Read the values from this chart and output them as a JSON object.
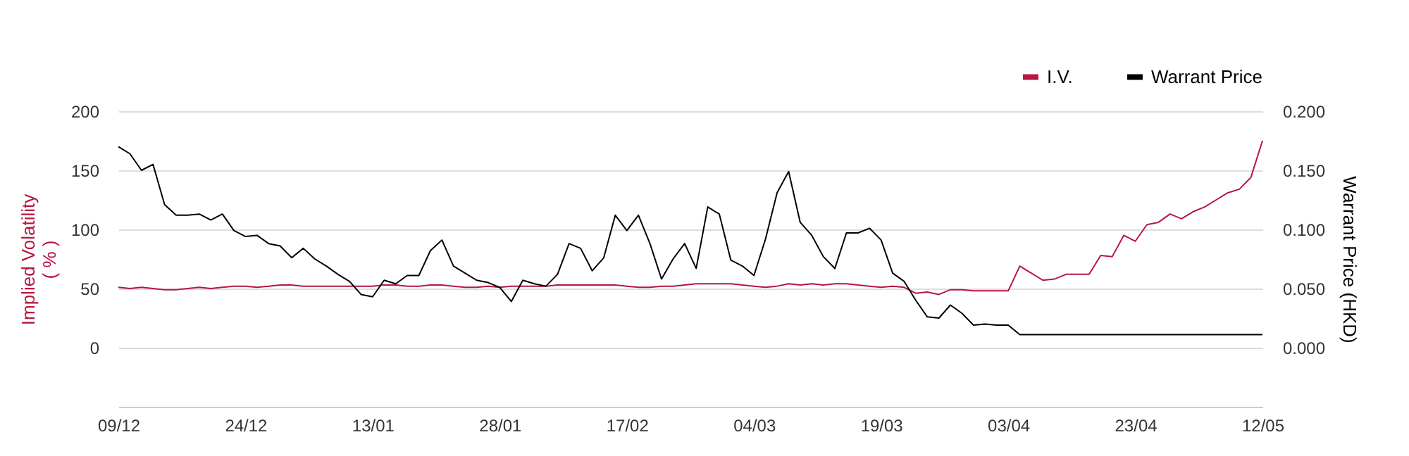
{
  "chart_data": {
    "type": "line",
    "categories": [
      "09/12",
      null,
      null,
      null,
      null,
      null,
      null,
      null,
      null,
      null,
      null,
      "24/12",
      null,
      null,
      null,
      null,
      null,
      null,
      null,
      null,
      null,
      null,
      "13/01",
      null,
      null,
      null,
      null,
      null,
      null,
      null,
      null,
      null,
      null,
      "28/01",
      null,
      null,
      null,
      null,
      null,
      null,
      null,
      null,
      null,
      null,
      "17/02",
      null,
      null,
      null,
      null,
      null,
      null,
      null,
      null,
      null,
      null,
      "04/03",
      null,
      null,
      null,
      null,
      null,
      null,
      null,
      null,
      null,
      null,
      "19/03",
      null,
      null,
      null,
      null,
      null,
      null,
      null,
      null,
      null,
      null,
      "03/04",
      null,
      null,
      null,
      null,
      null,
      null,
      null,
      null,
      null,
      null,
      "23/04",
      null,
      null,
      null,
      null,
      null,
      null,
      null,
      null,
      null,
      null,
      "12/05"
    ],
    "series": [
      {
        "name": "I.V.",
        "color": "#b5173f",
        "values": [
          51,
          50,
          51,
          50,
          49,
          49,
          50,
          51,
          50,
          51,
          52,
          52,
          51,
          52,
          53,
          53,
          52,
          52,
          52,
          52,
          52,
          52,
          52,
          53,
          53,
          52,
          52,
          53,
          53,
          52,
          51,
          51,
          52,
          51,
          52,
          52,
          52,
          52,
          53,
          53,
          53,
          53,
          53,
          53,
          52,
          51,
          51,
          52,
          52,
          53,
          54,
          54,
          54,
          54,
          53,
          52,
          51,
          52,
          54,
          53,
          54,
          53,
          54,
          54,
          53,
          52,
          51,
          52,
          51,
          46,
          47,
          45,
          49,
          49,
          48,
          48,
          48,
          48,
          69,
          63,
          57,
          58,
          62,
          62,
          62,
          78,
          77,
          95,
          90,
          104,
          106,
          113,
          109,
          115,
          119,
          125,
          131,
          134,
          144,
          175
        ]
      },
      {
        "name": "Warrant Price",
        "color": "#000000",
        "axis": "y2",
        "values": [
          0.17,
          0.164,
          0.15,
          0.155,
          0.121,
          0.112,
          0.112,
          0.113,
          0.108,
          0.113,
          0.099,
          0.094,
          0.095,
          0.088,
          0.086,
          0.076,
          0.084,
          0.075,
          0.069,
          0.062,
          0.056,
          0.045,
          0.043,
          0.057,
          0.054,
          0.061,
          0.061,
          0.082,
          0.091,
          0.069,
          0.063,
          0.057,
          0.055,
          0.051,
          0.039,
          0.057,
          0.054,
          0.052,
          0.062,
          0.088,
          0.084,
          0.065,
          0.076,
          0.112,
          0.099,
          0.112,
          0.088,
          0.058,
          0.075,
          0.088,
          0.067,
          0.119,
          0.113,
          0.074,
          0.069,
          0.061,
          0.092,
          0.131,
          0.149,
          0.106,
          0.095,
          0.077,
          0.067,
          0.097,
          0.097,
          0.101,
          0.091,
          0.063,
          0.056,
          0.04,
          0.026,
          0.025,
          0.036,
          0.029,
          0.019,
          0.02,
          0.019,
          0.019,
          0.011,
          0.011,
          0.011,
          0.011,
          0.011,
          0.011,
          0.011,
          0.011,
          0.011,
          0.011,
          0.011,
          0.011,
          0.011,
          0.011,
          0.011,
          0.011,
          0.011,
          0.011,
          0.011,
          0.011,
          0.011,
          0.011
        ]
      }
    ],
    "ylabel": "Implied Volatility\n( % )",
    "y2label": "Warrant Price (HKD)",
    "ylim": [
      -50,
      200
    ],
    "yticks": [
      0,
      50,
      100,
      150,
      200
    ],
    "y2lim": [
      -0.05,
      0.2
    ],
    "y2ticks": [
      {
        "value": 0,
        "label": "0.000"
      },
      {
        "value": 0.05,
        "label": "0.050"
      },
      {
        "value": 0.1,
        "label": "0.100"
      },
      {
        "value": 0.15,
        "label": "0.150"
      },
      {
        "value": 0.2,
        "label": "0.200"
      }
    ],
    "grid": "y",
    "legend": "top right",
    "marker": "none",
    "line_style": "solid"
  }
}
